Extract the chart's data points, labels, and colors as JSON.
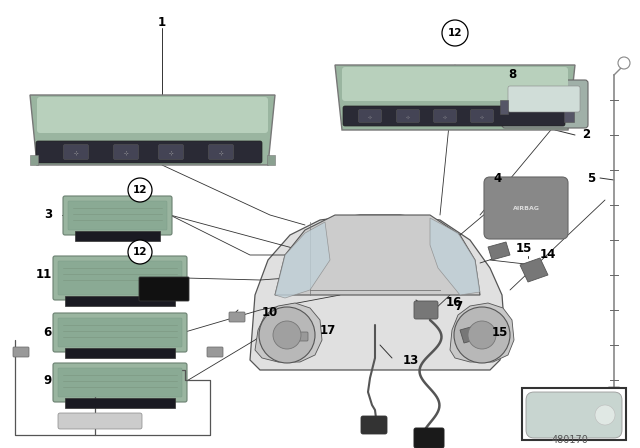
{
  "bg_color": "#ffffff",
  "fig_width": 6.4,
  "fig_height": 4.48,
  "dpi": 100,
  "part_number": "480170",
  "mirror_color": "#9ab5a0",
  "mirror_dark": "#2a2a35",
  "module_color_light": "#9ab5a0",
  "module_color_dark": "#6a8a74",
  "module_dark_strip": "#1a1a22",
  "line_color": "#333333",
  "label_fontsize": 8.5,
  "circle_label_fontsize": 7.5
}
